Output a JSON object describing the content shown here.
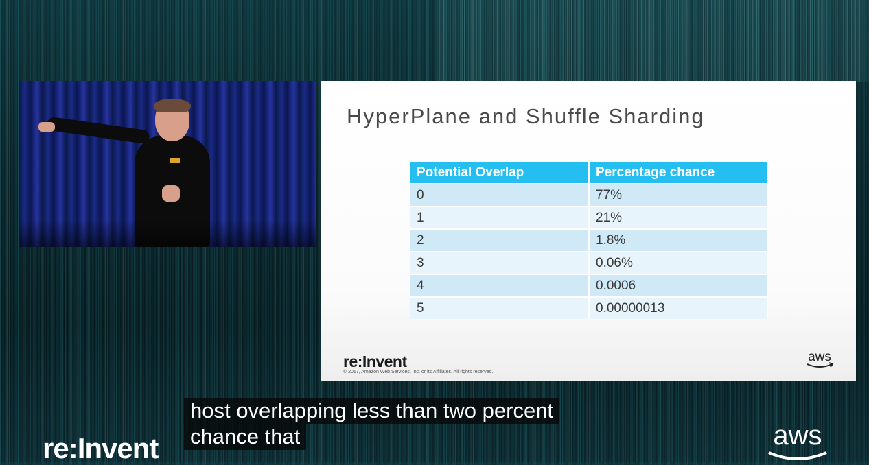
{
  "slide": {
    "title": "HyperPlane and Shuffle Sharding",
    "table": {
      "headers": [
        "Potential Overlap",
        "Percentage chance"
      ],
      "rows": [
        [
          "0",
          "77%"
        ],
        [
          "1",
          "21%"
        ],
        [
          "2",
          "1.8%"
        ],
        [
          "3",
          "0.06%"
        ],
        [
          "4",
          "0.0006"
        ],
        [
          "5",
          "0.00000013"
        ]
      ]
    },
    "brand_aws": "AWS",
    "brand_reinvent": "re:Invent",
    "copyright": "© 2017, Amazon Web Services, Inc. or its Affiliates. All rights reserved.",
    "aws_logo_text": "aws",
    "header_color": "#24bff0"
  },
  "captions": {
    "line1": "host overlapping less than two percent",
    "line2": "chance that"
  },
  "corner": {
    "brand_aws": "AWS",
    "brand_reinvent": "re:Invent",
    "aws_logo_text": "aws"
  }
}
